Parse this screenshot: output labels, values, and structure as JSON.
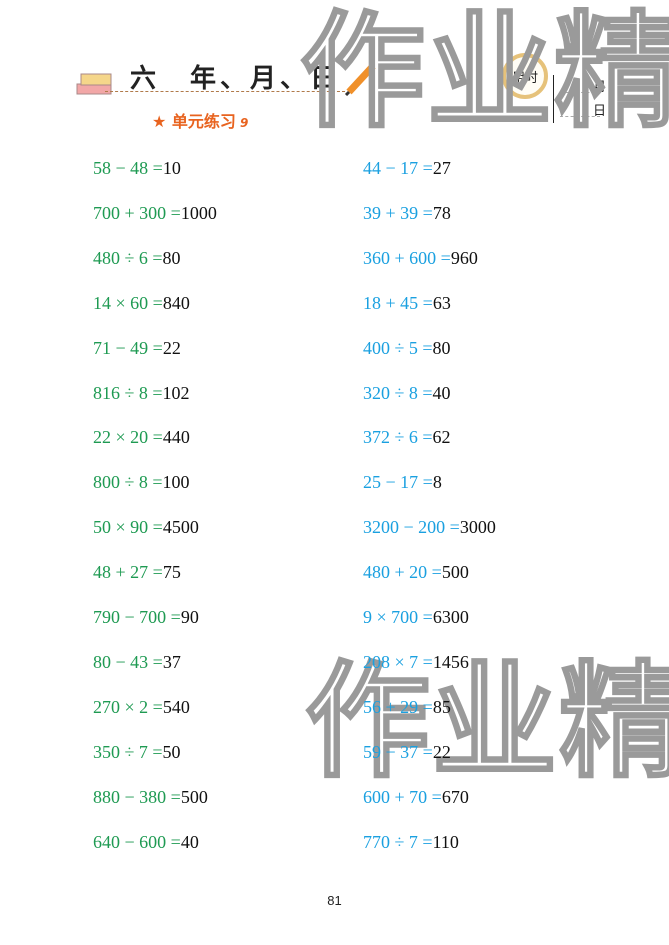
{
  "header": {
    "title": "六　年、月、日",
    "subtitle": "单元练习",
    "subtitle_num": "9",
    "clock_label": "用时",
    "month": "月",
    "day": "日"
  },
  "watermark": "作业精",
  "colors": {
    "left": "#1e9a52",
    "right": "#1aa0e0",
    "answer": "#111111",
    "accent": "#e8631f"
  },
  "left": [
    {
      "q": "58 − 48 =",
      "a": "10"
    },
    {
      "q": "700 + 300 =",
      "a": "1000"
    },
    {
      "q": "480 ÷ 6 =",
      "a": "80"
    },
    {
      "q": "14 × 60 =",
      "a": "840"
    },
    {
      "q": "71 − 49 =",
      "a": "22"
    },
    {
      "q": "816 ÷ 8 =",
      "a": "102"
    },
    {
      "q": "22 × 20 =",
      "a": "440"
    },
    {
      "q": "800 ÷ 8 =",
      "a": "100"
    },
    {
      "q": "50 × 90 =",
      "a": "4500"
    },
    {
      "q": "48 + 27 =",
      "a": "75"
    },
    {
      "q": "790 − 700 =",
      "a": "90"
    },
    {
      "q": "80 − 43 =",
      "a": "37"
    },
    {
      "q": "270 × 2 =",
      "a": "540"
    },
    {
      "q": "350 ÷ 7 =",
      "a": "50"
    },
    {
      "q": "880 − 380 =",
      "a": "500"
    },
    {
      "q": "640 − 600 =",
      "a": "40"
    }
  ],
  "right": [
    {
      "q": "44 − 17 =",
      "a": "27"
    },
    {
      "q": "39 + 39 =",
      "a": "78"
    },
    {
      "q": "360 + 600 =",
      "a": "960"
    },
    {
      "q": "18 + 45 =",
      "a": "63"
    },
    {
      "q": "400 ÷ 5 =",
      "a": "80"
    },
    {
      "q": "320 ÷ 8 =",
      "a": "40"
    },
    {
      "q": "372 ÷ 6 =",
      "a": "62"
    },
    {
      "q": "25 − 17 =",
      "a": "8"
    },
    {
      "q": "3200 − 200 =",
      "a": "3000"
    },
    {
      "q": "480 + 20 =",
      "a": "500"
    },
    {
      "q": "9 × 700 =",
      "a": "6300"
    },
    {
      "q": "208 × 7 =",
      "a": "1456"
    },
    {
      "q": "56 + 29 =",
      "a": "85"
    },
    {
      "q": "59 − 37 =",
      "a": "22"
    },
    {
      "q": "600 + 70 =",
      "a": "670"
    },
    {
      "q": "770 ÷ 7 =",
      "a": "110"
    }
  ],
  "page_number": "81"
}
